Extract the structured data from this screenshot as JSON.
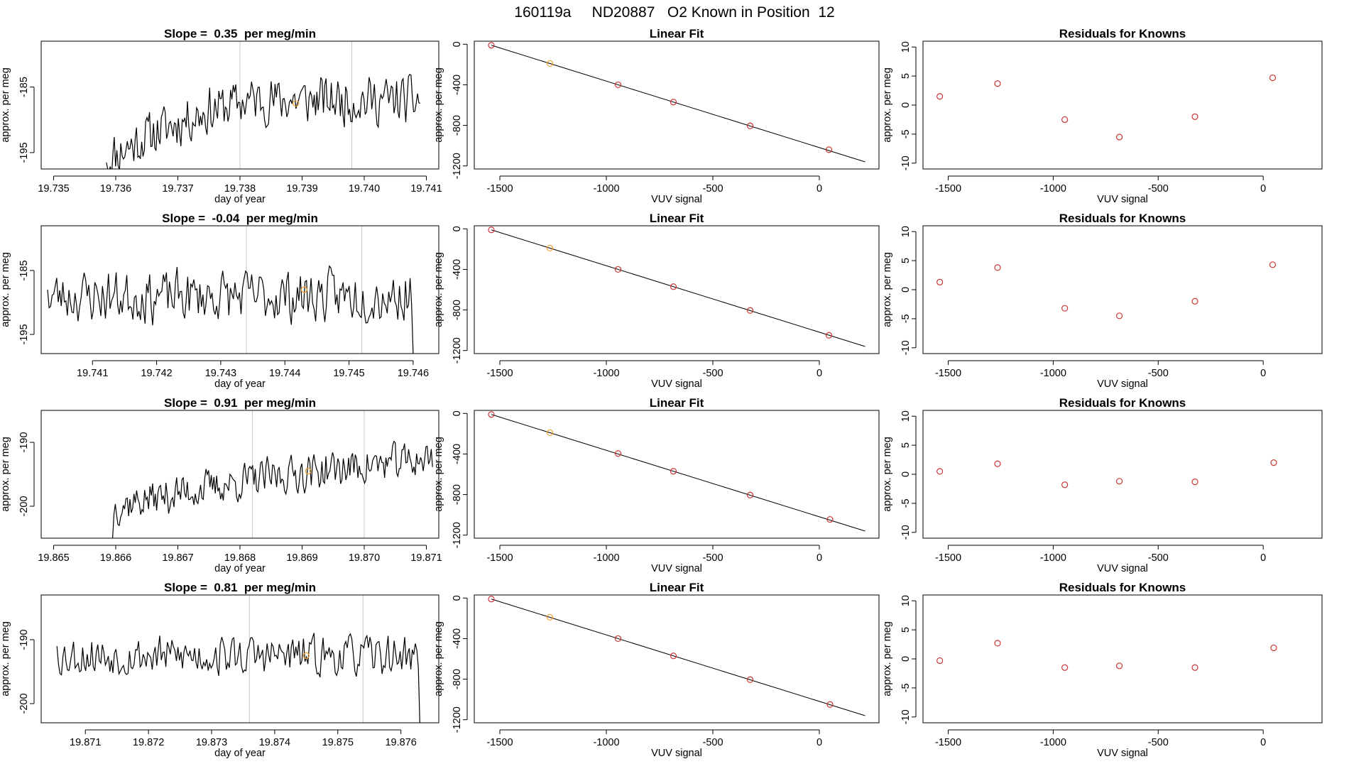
{
  "figure": {
    "title": "160119a     ND20887   O2 Known in Position  12",
    "background": "#ffffff",
    "colors": {
      "trace": "#000000",
      "highlight": "#f0a030",
      "knowns": "#cc3333",
      "vline": "#c8c8c8",
      "axis": "#000000"
    }
  },
  "chart_data": [
    {
      "type": "line",
      "title": "Slope =  0.35  per meg/min",
      "xlabel": "day of year",
      "ylabel": "approx. per meg",
      "xlim": [
        19.7348,
        19.7412
      ],
      "ylim": [
        -197.5,
        -178
      ],
      "xticks": [
        "19.735",
        "19.736",
        "19.737",
        "19.738",
        "19.739",
        "19.740",
        "19.741"
      ],
      "yticks": [
        -195,
        -185
      ],
      "vlines": [
        19.738,
        19.7398
      ],
      "highlight": {
        "x": 19.7389,
        "y": -187.5
      },
      "trace": {
        "x0": 19.73585,
        "x1": 19.7409,
        "seed": 11,
        "start": -196.5,
        "levels": [
          [
            0.0,
            -196
          ],
          [
            0.15,
            -192
          ],
          [
            0.3,
            -189
          ],
          [
            0.45,
            -187
          ],
          [
            1.0,
            -187
          ]
        ],
        "amp": 3.2
      }
    },
    {
      "type": "line",
      "title": "Linear Fit",
      "xlabel": "VUV signal",
      "ylabel": "approx. per meg",
      "xlim": [
        -1620,
        280
      ],
      "ylim": [
        -1230,
        30
      ],
      "xticks": [
        -1500,
        -1000,
        -500,
        0
      ],
      "yticks": [
        0,
        -400,
        -800,
        -1200
      ],
      "points": [
        [
          -1540,
          -10
        ],
        [
          -1265,
          -190
        ],
        [
          -945,
          -400
        ],
        [
          -685,
          -570
        ],
        [
          -325,
          -805
        ],
        [
          45,
          -1040
        ]
      ],
      "highlight_index": 1,
      "fit": {
        "x": [
          -1540,
          215
        ],
        "y": [
          -10,
          -1160
        ]
      }
    },
    {
      "type": "scatter",
      "title": "Residuals for Knowns",
      "xlabel": "VUV signal",
      "ylabel": "approx. per meg",
      "xlim": [
        -1620,
        280
      ],
      "ylim": [
        -11,
        11
      ],
      "xticks": [
        -1500,
        -1000,
        -500,
        0
      ],
      "yticks": [
        10,
        5,
        0,
        -5,
        -10
      ],
      "points": [
        [
          -1540,
          1.5
        ],
        [
          -1265,
          3.7
        ],
        [
          -945,
          -2.5
        ],
        [
          -685,
          -5.5
        ],
        [
          -325,
          -2.0
        ],
        [
          45,
          4.7
        ]
      ]
    },
    {
      "type": "line",
      "title": "Slope =  -0.04  per meg/min",
      "xlabel": "day of year",
      "ylabel": "approx. per meg",
      "xlim": [
        19.7402,
        19.7464
      ],
      "ylim": [
        -198,
        -178
      ],
      "xticks": [
        "19.741",
        "19.742",
        "19.743",
        "19.744",
        "19.745",
        "19.746"
      ],
      "yticks": [
        -195,
        -185
      ],
      "vlines": [
        19.7434,
        19.7452
      ],
      "highlight": {
        "x": 19.7443,
        "y": -188
      },
      "trace": {
        "x0": 19.7403,
        "x1": 19.746,
        "seed": 23,
        "start": -188,
        "levels": [
          [
            0.0,
            -189
          ],
          [
            1.0,
            -189
          ]
        ],
        "amp": 3.6,
        "end": -198
      }
    },
    {
      "type": "line",
      "title": "Linear Fit",
      "xlabel": "VUV signal",
      "ylabel": "approx. per meg",
      "xlim": [
        -1620,
        280
      ],
      "ylim": [
        -1230,
        30
      ],
      "xticks": [
        -1500,
        -1000,
        -500,
        0
      ],
      "yticks": [
        0,
        -400,
        -800,
        -1200
      ],
      "points": [
        [
          -1540,
          -10
        ],
        [
          -1265,
          -190
        ],
        [
          -945,
          -400
        ],
        [
          -685,
          -570
        ],
        [
          -325,
          -805
        ],
        [
          45,
          -1050
        ]
      ],
      "highlight_index": 1,
      "fit": {
        "x": [
          -1540,
          215
        ],
        "y": [
          -10,
          -1160
        ]
      }
    },
    {
      "type": "scatter",
      "title": "Residuals for Knowns",
      "xlabel": "VUV signal",
      "ylabel": "approx. per meg",
      "xlim": [
        -1620,
        280
      ],
      "ylim": [
        -11,
        11
      ],
      "xticks": [
        -1500,
        -1000,
        -500,
        0
      ],
      "yticks": [
        10,
        5,
        0,
        -5,
        -10
      ],
      "points": [
        [
          -1540,
          1.3
        ],
        [
          -1265,
          3.8
        ],
        [
          -945,
          -3.2
        ],
        [
          -685,
          -4.5
        ],
        [
          -325,
          -2.0
        ],
        [
          45,
          4.3
        ]
      ]
    },
    {
      "type": "line",
      "title": "Slope =  0.91  per meg/min",
      "xlabel": "day of year",
      "ylabel": "approx. per meg",
      "xlim": [
        19.8648,
        19.8712
      ],
      "ylim": [
        -205,
        -185
      ],
      "xticks": [
        "19.865",
        "19.866",
        "19.867",
        "19.868",
        "19.869",
        "19.870",
        "19.871"
      ],
      "yticks": [
        -200,
        -190
      ],
      "vlines": [
        19.8682,
        19.87
      ],
      "highlight": {
        "x": 19.8691,
        "y": -194.5
      },
      "trace": {
        "x0": 19.86595,
        "x1": 19.8711,
        "seed": 37,
        "start": -205,
        "levels": [
          [
            0.0,
            -200
          ],
          [
            0.25,
            -197.5
          ],
          [
            0.55,
            -195
          ],
          [
            1.0,
            -192.5
          ]
        ],
        "amp": 2.6
      }
    },
    {
      "type": "line",
      "title": "Linear Fit",
      "xlabel": "VUV signal",
      "ylabel": "approx. per meg",
      "xlim": [
        -1620,
        280
      ],
      "ylim": [
        -1230,
        30
      ],
      "xticks": [
        -1500,
        -1000,
        -500,
        0
      ],
      "yticks": [
        0,
        -400,
        -800,
        -1200
      ],
      "points": [
        [
          -1540,
          -10
        ],
        [
          -1265,
          -190
        ],
        [
          -945,
          -395
        ],
        [
          -685,
          -570
        ],
        [
          -325,
          -805
        ],
        [
          50,
          -1045
        ]
      ],
      "highlight_index": 1,
      "fit": {
        "x": [
          -1540,
          215
        ],
        "y": [
          -10,
          -1160
        ]
      }
    },
    {
      "type": "scatter",
      "title": "Residuals for Knowns",
      "xlabel": "VUV signal",
      "ylabel": "approx. per meg",
      "xlim": [
        -1620,
        280
      ],
      "ylim": [
        -11,
        11
      ],
      "xticks": [
        -1500,
        -1000,
        -500,
        0
      ],
      "yticks": [
        10,
        5,
        0,
        -5,
        -10
      ],
      "points": [
        [
          -1540,
          0.5
        ],
        [
          -1265,
          1.8
        ],
        [
          -945,
          -1.8
        ],
        [
          -685,
          -1.2
        ],
        [
          -325,
          -1.3
        ],
        [
          50,
          2.0
        ]
      ]
    },
    {
      "type": "line",
      "title": "Slope =  0.81  per meg/min",
      "xlabel": "day of year",
      "ylabel": "approx. per meg",
      "xlim": [
        19.8703,
        19.8766
      ],
      "ylim": [
        -203,
        -183
      ],
      "xticks": [
        "19.871",
        "19.872",
        "19.873",
        "19.874",
        "19.875",
        "19.876"
      ],
      "yticks": [
        -200,
        -190
      ],
      "vlines": [
        19.8736,
        19.8754
      ],
      "highlight": {
        "x": 19.8745,
        "y": -192.5
      },
      "trace": {
        "x0": 19.87055,
        "x1": 19.8763,
        "seed": 53,
        "start": -191,
        "levels": [
          [
            0.0,
            -192.5
          ],
          [
            1.0,
            -192.5
          ]
        ],
        "amp": 2.8,
        "end": -203
      }
    },
    {
      "type": "line",
      "title": "Linear Fit",
      "xlabel": "VUV signal",
      "ylabel": "approx. per meg",
      "xlim": [
        -1620,
        280
      ],
      "ylim": [
        -1230,
        30
      ],
      "xticks": [
        -1500,
        -1000,
        -500,
        0
      ],
      "yticks": [
        0,
        -400,
        -800,
        -1200
      ],
      "points": [
        [
          -1540,
          -10
        ],
        [
          -1265,
          -190
        ],
        [
          -945,
          -400
        ],
        [
          -685,
          -570
        ],
        [
          -325,
          -805
        ],
        [
          50,
          -1050
        ]
      ],
      "highlight_index": 1,
      "fit": {
        "x": [
          -1540,
          215
        ],
        "y": [
          -10,
          -1160
        ]
      }
    },
    {
      "type": "scatter",
      "title": "Residuals for Knowns",
      "xlabel": "VUV signal",
      "ylabel": "approx. per meg",
      "xlim": [
        -1620,
        280
      ],
      "ylim": [
        -11,
        11
      ],
      "xticks": [
        -1500,
        -1000,
        -500,
        0
      ],
      "yticks": [
        10,
        5,
        0,
        -5,
        -10
      ],
      "points": [
        [
          -1540,
          -0.3
        ],
        [
          -1265,
          2.7
        ],
        [
          -945,
          -1.5
        ],
        [
          -685,
          -1.2
        ],
        [
          -325,
          -1.5
        ],
        [
          50,
          1.9
        ]
      ]
    }
  ]
}
